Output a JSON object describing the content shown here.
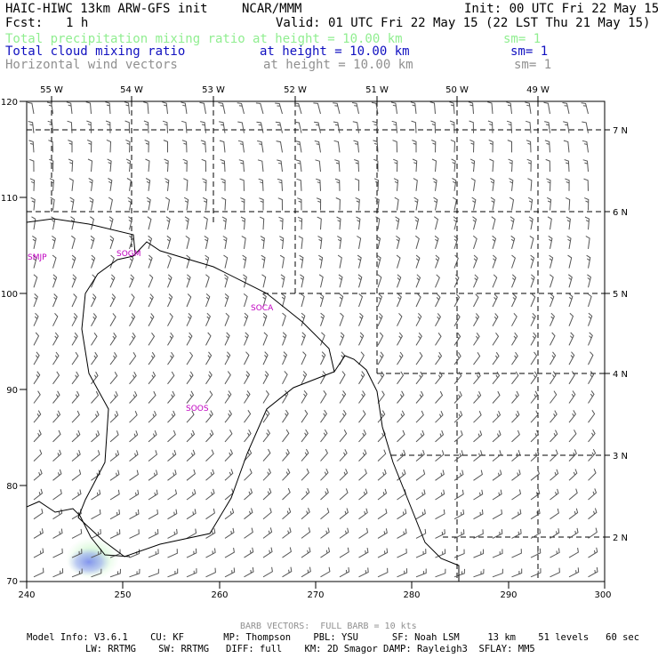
{
  "header": {
    "title_left": "HAIC-HIWC 13km ARW-GFS init",
    "title_center": "NCAR/MMM",
    "init": "Init: 00 UTC Fri 22 May 15",
    "fcst_label": "Fcst:",
    "fcst_value": "1 h",
    "valid": "Valid: 01 UTC Fri 22 May 15 (22 LST Thu 21 May 15)"
  },
  "fields": [
    {
      "name": "Total precipitation mixing ratio",
      "height": "at height = 10.00 km",
      "sm": "sm= 1",
      "color": "#90ee90"
    },
    {
      "name": "Total cloud mixing ratio",
      "height": "at height = 10.00 km",
      "sm": "sm= 1",
      "color": "#1010c0"
    },
    {
      "name": "Horizontal wind vectors",
      "height": "at height = 10.00 km",
      "sm": "sm= 1",
      "color": "#909090"
    }
  ],
  "map": {
    "x_ticks": [
      "240",
      "250",
      "260",
      "270",
      "280",
      "290",
      "300"
    ],
    "y_ticks": [
      "120",
      "110",
      "100",
      "90",
      "80",
      "70"
    ],
    "lon_labels": [
      "55 W",
      "54 W",
      "53 W",
      "52 W",
      "51 W",
      "50 W",
      "49 W"
    ],
    "lat_labels": [
      "7 N",
      "6 N",
      "5 N",
      "4 N",
      "3 N",
      "2 N"
    ],
    "stations": [
      "SMJP",
      "SOGM",
      "SOCA",
      "SOOS"
    ]
  },
  "footer": {
    "barb": "BARB VECTORS:  FULL BARB = 10 kts",
    "model_line1": "Model Info: V3.6.1    CU: KF       MP: Thompson    PBL: YSU      SF: Noah LSM     13 km    51 levels   60 sec",
    "model_line2": "LW: RRTMG    SW: RRTMG   DIFF: full    KM: 2D Smagor DAMP: Rayleigh3  SFLAY: MM5"
  }
}
